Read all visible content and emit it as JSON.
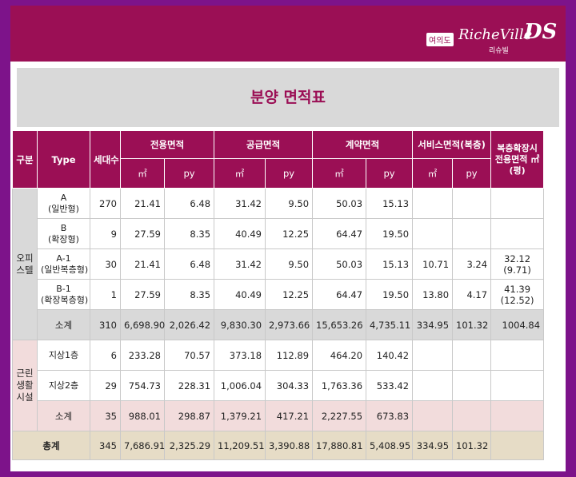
{
  "header": {
    "logo_tag": "여의도",
    "logo_brand": "RicheVille",
    "logo_mark": "DS",
    "logo_sub": "리슈빌",
    "brand_color": "#9b0f55",
    "frame_color": "#7d138a"
  },
  "title": "분양 면적표",
  "table": {
    "headers": {
      "category": "구분",
      "type": "Type",
      "units": "세대수",
      "exclusive": "전용면적",
      "supply": "공급면적",
      "contract": "계약면적",
      "service": "서비스면적(복층)",
      "duplex": "복층확장시 전용면적 ㎡(평)",
      "sqm": "㎡",
      "py": "py"
    },
    "group_office": "오피 스텔",
    "group_retail": "근린 생활 시설",
    "rows": [
      {
        "type": "A",
        "type_sub": "(일반형)",
        "units": "270",
        "ex_m": "21.41",
        "ex_py": "6.48",
        "su_m": "31.42",
        "su_py": "9.50",
        "co_m": "50.03",
        "co_py": "15.13",
        "sv_m": "",
        "sv_py": "",
        "dup": "",
        "dup_sub": ""
      },
      {
        "type": "B",
        "type_sub": "(확장형)",
        "units": "9",
        "ex_m": "27.59",
        "ex_py": "8.35",
        "su_m": "40.49",
        "su_py": "12.25",
        "co_m": "64.47",
        "co_py": "19.50",
        "sv_m": "",
        "sv_py": "",
        "dup": "",
        "dup_sub": ""
      },
      {
        "type": "A-1",
        "type_sub": "(일반복층형)",
        "units": "30",
        "ex_m": "21.41",
        "ex_py": "6.48",
        "su_m": "31.42",
        "su_py": "9.50",
        "co_m": "50.03",
        "co_py": "15.13",
        "sv_m": "10.71",
        "sv_py": "3.24",
        "dup": "32.12",
        "dup_sub": "(9.71)"
      },
      {
        "type": "B-1",
        "type_sub": "(확장복층형)",
        "units": "1",
        "ex_m": "27.59",
        "ex_py": "8.35",
        "su_m": "40.49",
        "su_py": "12.25",
        "co_m": "64.47",
        "co_py": "19.50",
        "sv_m": "13.80",
        "sv_py": "4.17",
        "dup": "41.39",
        "dup_sub": "(12.52)"
      }
    ],
    "office_subtotal": {
      "label": "소계",
      "units": "310",
      "ex_m": "6,698.90",
      "ex_py": "2,026.42",
      "su_m": "9,830.30",
      "su_py": "2,973.66",
      "co_m": "15,653.26",
      "co_py": "4,735.11",
      "sv_m": "334.95",
      "sv_py": "101.32",
      "dup": "1004.84"
    },
    "retail_rows": [
      {
        "type": "지상1층",
        "units": "6",
        "ex_m": "233.28",
        "ex_py": "70.57",
        "su_m": "373.18",
        "su_py": "112.89",
        "co_m": "464.20",
        "co_py": "140.42"
      },
      {
        "type": "지상2층",
        "units": "29",
        "ex_m": "754.73",
        "ex_py": "228.31",
        "su_m": "1,006.04",
        "su_py": "304.33",
        "co_m": "1,763.36",
        "co_py": "533.42"
      }
    ],
    "retail_subtotal": {
      "label": "소계",
      "units": "35",
      "ex_m": "988.01",
      "ex_py": "298.87",
      "su_m": "1,379.21",
      "su_py": "417.21",
      "co_m": "2,227.55",
      "co_py": "673.83"
    },
    "total": {
      "label": "총계",
      "units": "345",
      "ex_m": "7,686.91",
      "ex_py": "2,325.29",
      "su_m": "11,209.51",
      "su_py": "3,390.88",
      "co_m": "17,880.81",
      "co_py": "5,408.95",
      "sv_m": "334.95",
      "sv_py": "101.32",
      "dup": ""
    }
  }
}
